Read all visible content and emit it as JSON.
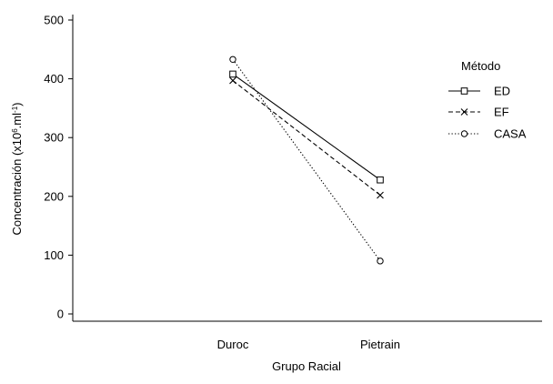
{
  "chart_data": {
    "type": "line",
    "categories": [
      "Duroc",
      "Pietrain"
    ],
    "xlabel": "Grupo Racial",
    "ylabel": {
      "prefix": "Concentración (x10",
      "exp1": "6",
      "mid": ".ml",
      "exp2": "-1",
      "suffix": ")"
    },
    "ylim": [
      0,
      500
    ],
    "yticks": [
      0,
      100,
      200,
      300,
      400,
      500
    ],
    "legend": {
      "title": "Método",
      "position": "right"
    },
    "series": [
      {
        "name": "ED",
        "values": [
          408,
          228
        ],
        "marker": "square",
        "dash": "solid"
      },
      {
        "name": "EF",
        "values": [
          397,
          202
        ],
        "marker": "x",
        "dash": "dashed"
      },
      {
        "name": "CASA",
        "values": [
          433,
          90
        ],
        "marker": "circle",
        "dash": "dotted"
      }
    ]
  }
}
